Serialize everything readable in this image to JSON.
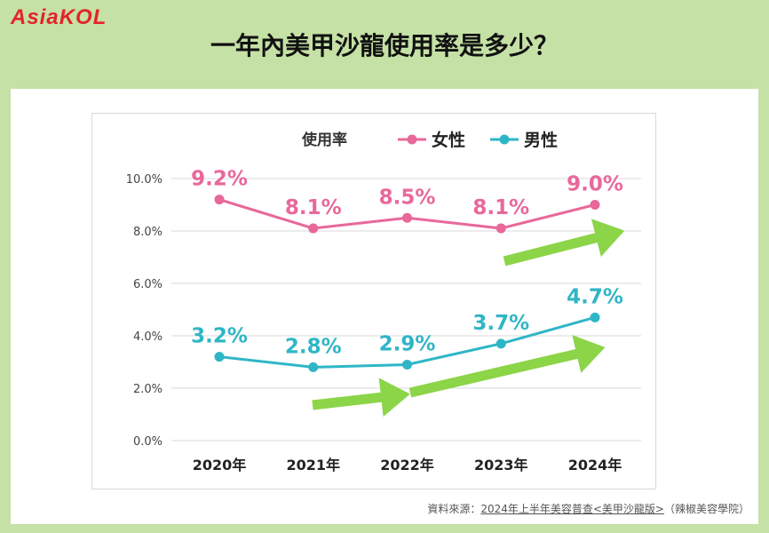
{
  "header": {
    "logo_text": "AsiaKOL",
    "title": "一年內美甲沙龍使用率是多少？"
  },
  "source": {
    "prefix": "資料來源：",
    "link_text": "2024年上半年美容普查<美甲沙龍版>",
    "suffix": "（辣椒美容學院）"
  },
  "colors": {
    "female": "#e8689a",
    "male": "#2fb6c6",
    "arrow": "#8cd448"
  },
  "chart_data": {
    "type": "line",
    "legend_title": "使用率",
    "legend_position": "top",
    "categories": [
      "2020年",
      "2021年",
      "2022年",
      "2023年",
      "2024年"
    ],
    "ylim": [
      0,
      10
    ],
    "yticks": [
      "0.0%",
      "2.0%",
      "4.0%",
      "6.0%",
      "8.0%",
      "10.0%"
    ],
    "grid": true,
    "series": [
      {
        "name": "女性",
        "values": [
          9.2,
          8.1,
          8.5,
          8.1,
          9.0
        ],
        "labels": [
          "9.2%",
          "8.1%",
          "8.5%",
          "8.1%",
          "9.0%"
        ]
      },
      {
        "name": "男性",
        "values": [
          3.2,
          2.8,
          2.9,
          3.7,
          4.7
        ],
        "labels": [
          "3.2%",
          "2.8%",
          "2.9%",
          "3.7%",
          "4.7%"
        ]
      }
    ]
  }
}
